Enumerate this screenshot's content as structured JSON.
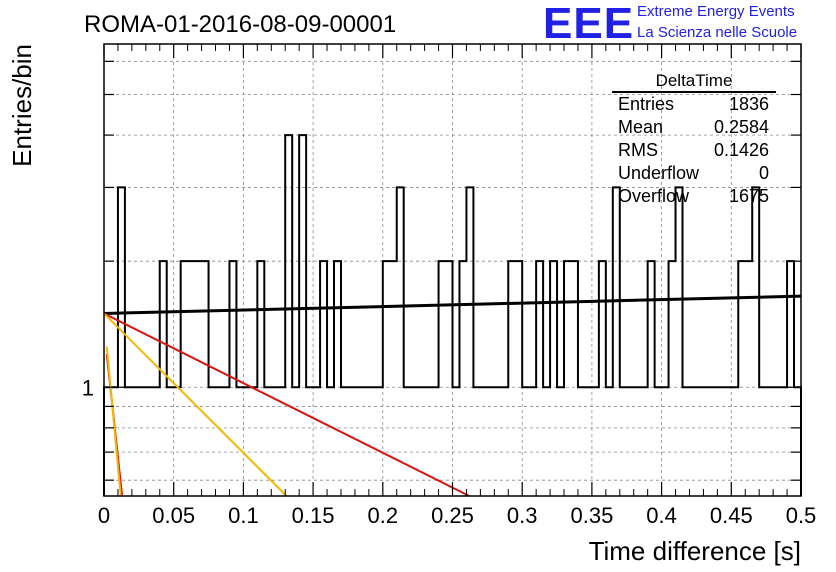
{
  "logo": {
    "mark": "EEE",
    "line1": "Extreme Energy Events",
    "line2": "La Scienza nelle Scuole",
    "color": "#2121e6"
  },
  "chart_data": {
    "type": "histogram",
    "title": "ROMA-01-2016-08-09-00001",
    "xlabel": "Time difference [s]",
    "ylabel": "Entries/bin",
    "xlim": [
      0,
      0.5
    ],
    "log_y": true,
    "ylim": [
      0.55,
      6.6
    ],
    "x_ticks": [
      "0",
      "0.05",
      "0.1",
      "0.15",
      "0.2",
      "0.25",
      "0.3",
      "0.35",
      "0.4",
      "0.45",
      "0.5"
    ],
    "y_ticks": [
      "1"
    ],
    "grid": true,
    "bin_width": 0.005,
    "bin_values": [
      1,
      1,
      3,
      1,
      1,
      1,
      1,
      1,
      2,
      1,
      1,
      2,
      2,
      2,
      2,
      1,
      1,
      1,
      2,
      1,
      1,
      1,
      2,
      1,
      1,
      1,
      4,
      1,
      4,
      1,
      1,
      2,
      1,
      2,
      1,
      1,
      1,
      1,
      1,
      1,
      2,
      2,
      3,
      1,
      1,
      1,
      1,
      1,
      2,
      2,
      1,
      2,
      3,
      1,
      1,
      1,
      1,
      1,
      2,
      2,
      1,
      1,
      2,
      1,
      2,
      1,
      2,
      2,
      1,
      1,
      1,
      2,
      1,
      3,
      1,
      1,
      1,
      1,
      2,
      1,
      1,
      2,
      3,
      1,
      1,
      1,
      1,
      1,
      1,
      1,
      1,
      2,
      2,
      3,
      1,
      1,
      1,
      1,
      2,
      1
    ],
    "fit_lines": [
      {
        "color": "#000000",
        "points": [
          [
            0,
            1.5
          ],
          [
            0.5,
            1.65
          ]
        ]
      },
      {
        "color": "#dd1111",
        "points": [
          [
            0,
            1.5
          ],
          [
            0.262,
            0.55
          ]
        ]
      },
      {
        "color": "#f2b800",
        "points": [
          [
            0,
            1.5
          ],
          [
            0.131,
            0.55
          ]
        ]
      },
      {
        "color": "#dd1111",
        "points": [
          [
            0.002,
            1.2
          ],
          [
            0.013,
            0.55
          ]
        ]
      },
      {
        "color": "#f2b800",
        "points": [
          [
            0.002,
            1.25
          ],
          [
            0.012,
            0.55
          ]
        ]
      }
    ],
    "stats": {
      "title": "DeltaTime",
      "rows": [
        {
          "label": "Entries",
          "value": "1836"
        },
        {
          "label": "Mean",
          "value": "0.2584"
        },
        {
          "label": "RMS",
          "value": "0.1426"
        },
        {
          "label": "Underflow",
          "value": "0"
        },
        {
          "label": "Overflow",
          "value": "1675"
        }
      ]
    }
  }
}
